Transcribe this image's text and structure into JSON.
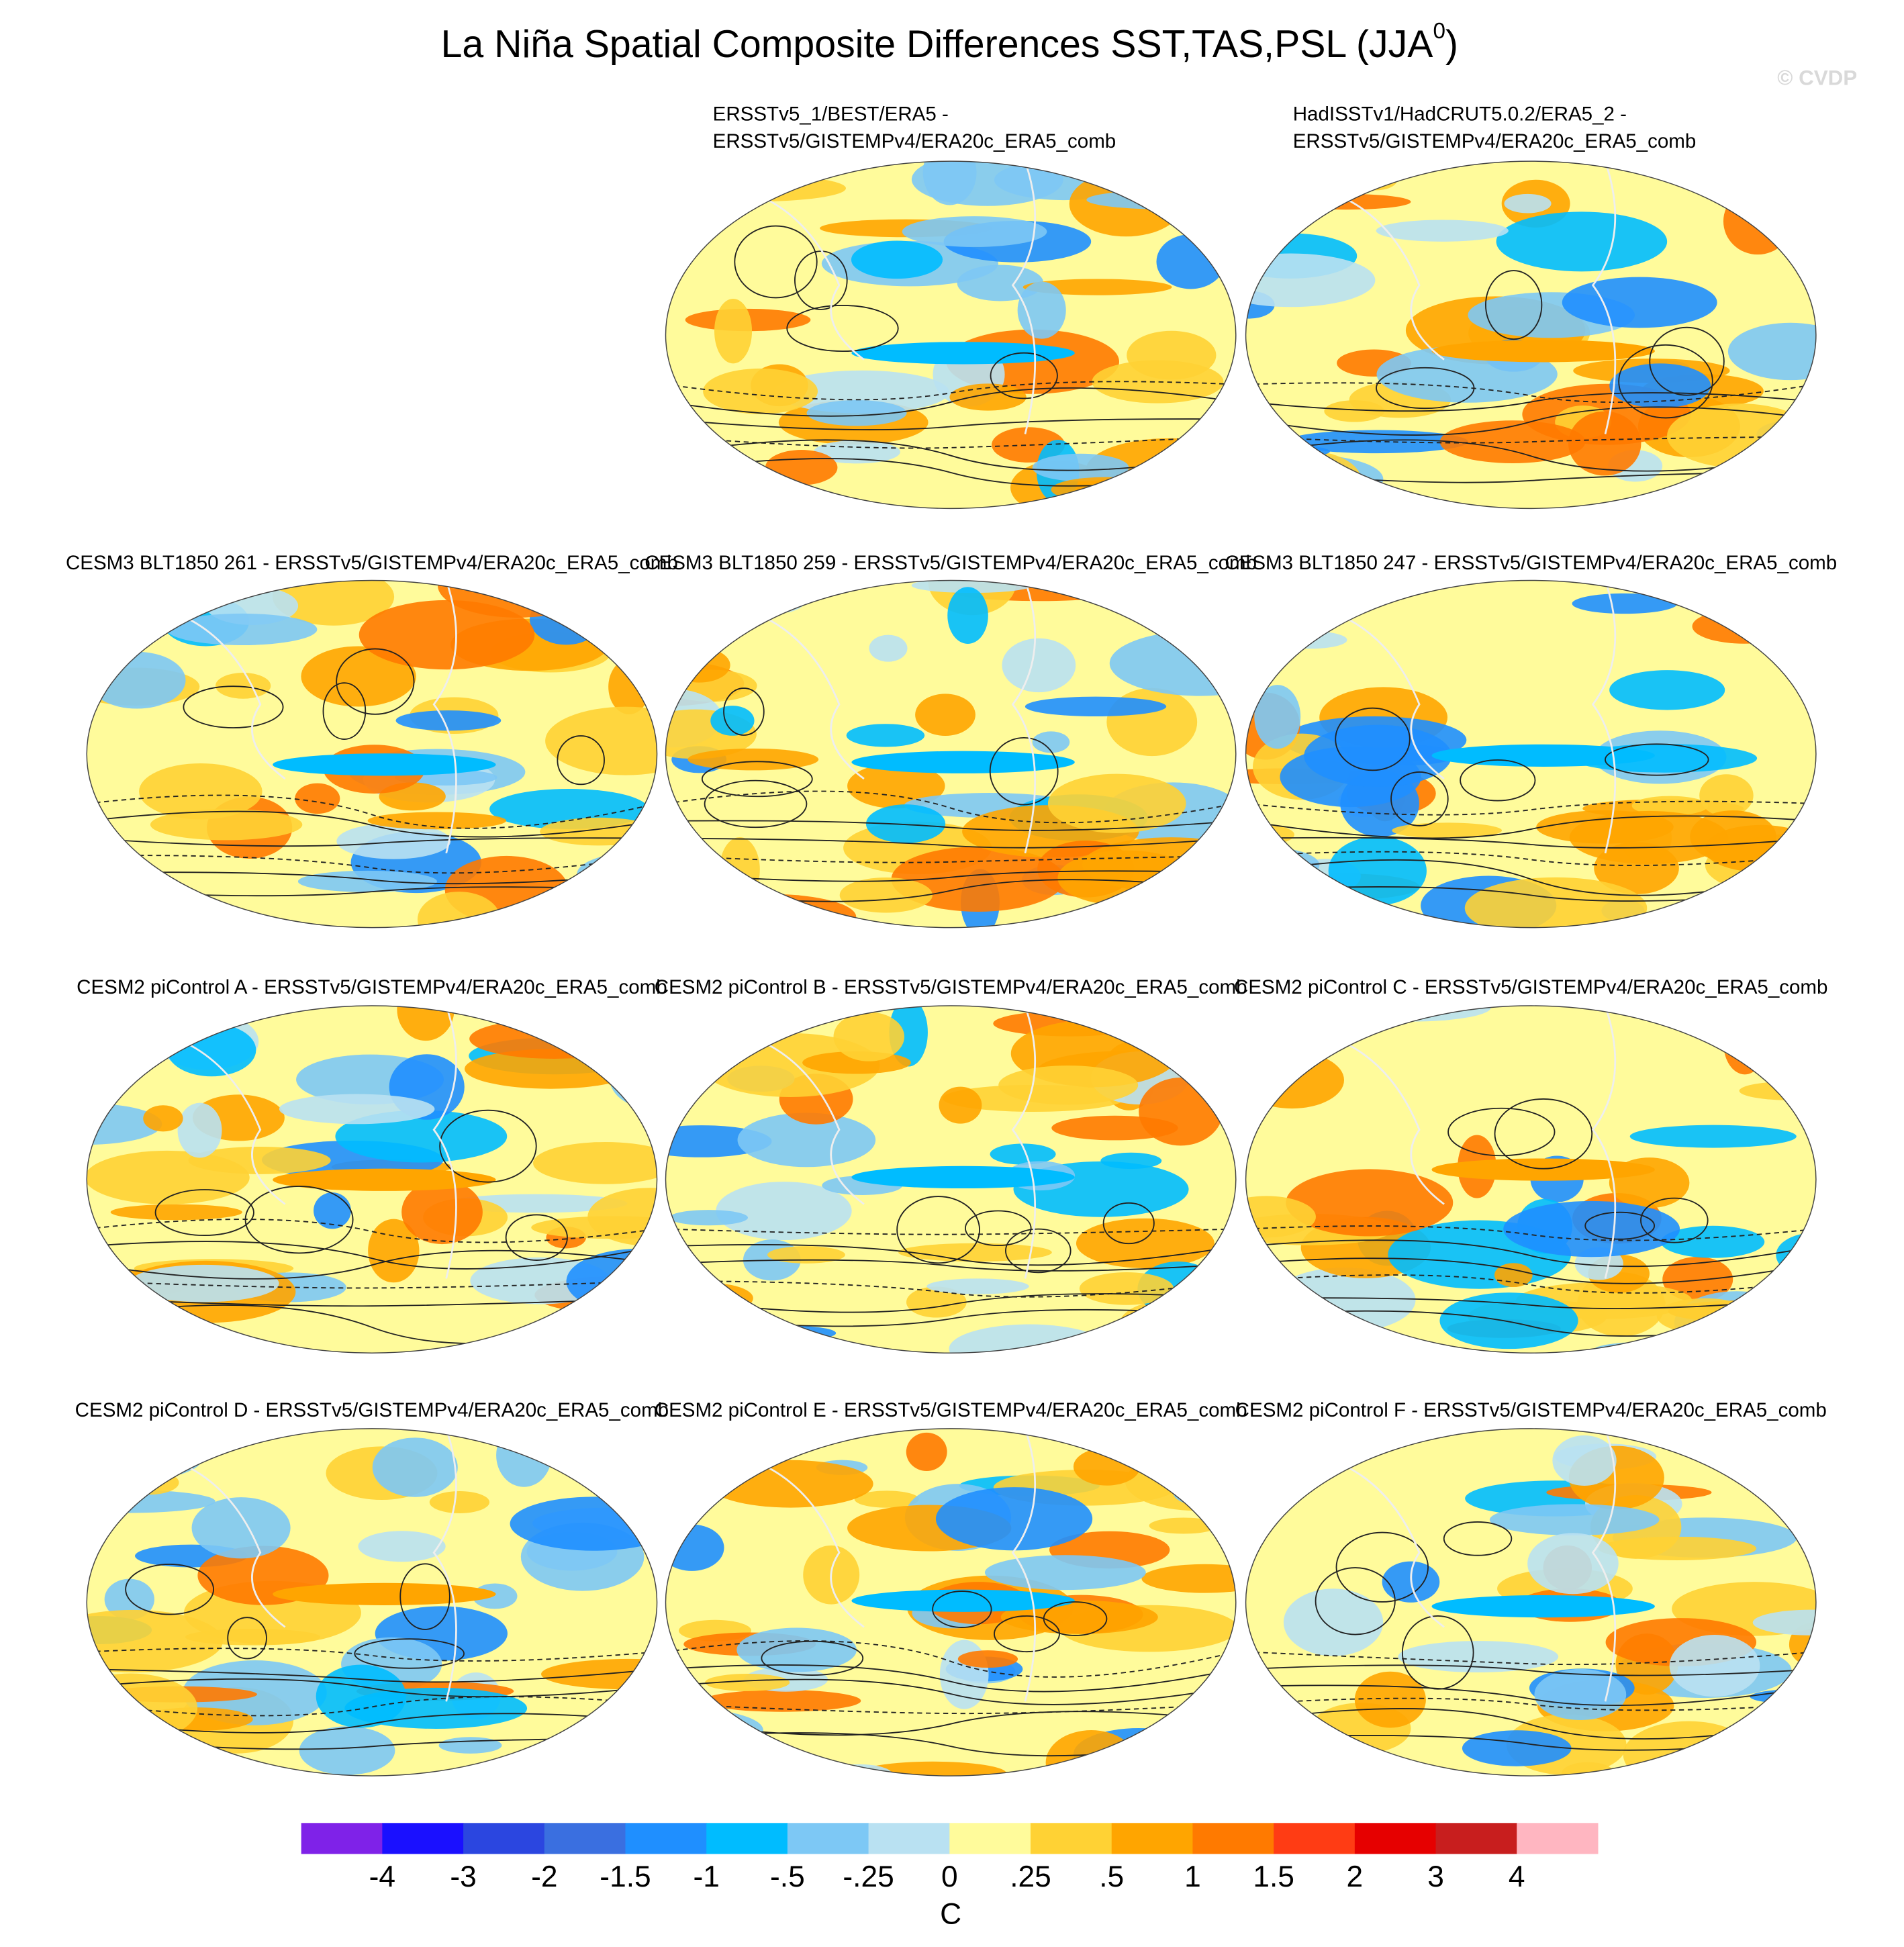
{
  "title": {
    "main": "La Niña Spatial Composite Differences SST,TAS,PSL (JJA",
    "sup": "0",
    "end": ")"
  },
  "watermark": "© CVDP",
  "panels": [
    {
      "title_lines": [
        "ERSSTv5_1/BEST/ERA5 -",
        "ERSSTv5/GISTEMPv4/ERA20c_ERA5_comb"
      ]
    },
    {
      "title_lines": [
        "HadISSTv1/HadCRUT5.0.2/ERA5_2 -",
        "ERSSTv5/GISTEMPv4/ERA20c_ERA5_comb"
      ]
    },
    {
      "title_lines": [
        "CESM3 BLT1850 261 - ERSSTv5/GISTEMPv4/ERA20c_ERA5_comb"
      ]
    },
    {
      "title_lines": [
        "CESM3 BLT1850 259 - ERSSTv5/GISTEMPv4/ERA20c_ERA5_comb"
      ]
    },
    {
      "title_lines": [
        "CESM3 BLT1850 247 - ERSSTv5/GISTEMPv4/ERA20c_ERA5_comb"
      ]
    },
    {
      "title_lines": [
        "CESM2 piControl A - ERSSTv5/GISTEMPv4/ERA20c_ERA5_comb"
      ]
    },
    {
      "title_lines": [
        "CESM2 piControl B - ERSSTv5/GISTEMPv4/ERA20c_ERA5_comb"
      ]
    },
    {
      "title_lines": [
        "CESM2 piControl C - ERSSTv5/GISTEMPv4/ERA20c_ERA5_comb"
      ]
    },
    {
      "title_lines": [
        "CESM2 piControl D - ERSSTv5/GISTEMPv4/ERA20c_ERA5_comb"
      ]
    },
    {
      "title_lines": [
        "CESM2 piControl E - ERSSTv5/GISTEMPv4/ERA20c_ERA5_comb"
      ]
    },
    {
      "title_lines": [
        "CESM2 piControl F - ERSSTv5/GISTEMPv4/ERA20c_ERA5_comb"
      ]
    }
  ],
  "colorbar": {
    "colors": [
      "#7f22e8",
      "#1a10ff",
      "#2b46e0",
      "#3a6fe0",
      "#1f8fff",
      "#00bcff",
      "#7dc8f5",
      "#b9e1f2",
      "#fffb9b",
      "#ffd234",
      "#ffa500",
      "#ff7a00",
      "#ff3c14",
      "#e60000",
      "#c81e1e",
      "#ffb6c1"
    ],
    "labels": [
      "-4",
      "-3",
      "-2",
      "-1.5",
      "-1",
      "-.5",
      "-.25",
      "0",
      ".25",
      ".5",
      "1",
      "1.5",
      "2",
      "3",
      "4"
    ],
    "unit": "C"
  }
}
